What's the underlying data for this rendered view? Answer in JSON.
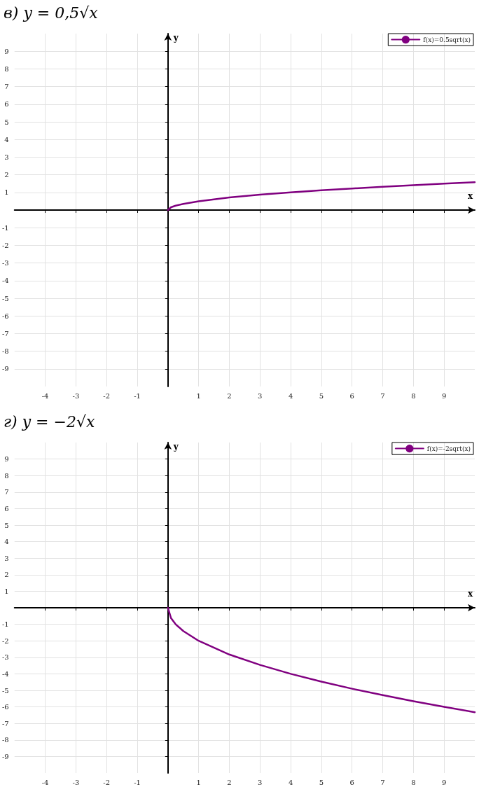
{
  "chart_data": [
    {
      "type": "line",
      "title": "в) y = 0,5√x",
      "xlabel": "x",
      "ylabel": "y",
      "xlim": [
        -5,
        10
      ],
      "ylim": [
        -10,
        10
      ],
      "xticks": [
        -4,
        -3,
        -2,
        -1,
        1,
        2,
        3,
        4,
        5,
        6,
        7,
        8,
        9
      ],
      "yticks": [
        -9,
        -8,
        -7,
        -6,
        -5,
        -4,
        -3,
        -2,
        -1,
        1,
        2,
        3,
        4,
        5,
        6,
        7,
        8,
        9
      ],
      "grid": true,
      "legend": "top right",
      "marker": "none",
      "line_style": "solid",
      "series": [
        {
          "name": "f(x)=0.5sqrt(x)",
          "color": "#800080",
          "x": [
            0,
            0.1,
            0.25,
            0.5,
            1,
            2,
            3,
            4,
            5,
            6,
            7,
            8,
            9,
            10
          ],
          "values": [
            0,
            0.16,
            0.25,
            0.35,
            0.5,
            0.71,
            0.87,
            1,
            1.12,
            1.22,
            1.32,
            1.41,
            1.5,
            1.58
          ]
        }
      ]
    },
    {
      "type": "line",
      "title": "г) y = −2√x",
      "xlabel": "x",
      "ylabel": "y",
      "xlim": [
        -5,
        10
      ],
      "ylim": [
        -10,
        10
      ],
      "xticks": [
        -4,
        -3,
        -2,
        -1,
        1,
        2,
        3,
        4,
        5,
        6,
        7,
        8,
        9
      ],
      "yticks": [
        -9,
        -8,
        -7,
        -6,
        -5,
        -4,
        -3,
        -2,
        -1,
        1,
        2,
        3,
        4,
        5,
        6,
        7,
        8,
        9
      ],
      "grid": true,
      "legend": "top right",
      "marker": "none",
      "line_style": "solid",
      "series": [
        {
          "name": "f(x)=-2sqrt(x)",
          "color": "#800080",
          "x": [
            0,
            0.1,
            0.25,
            0.5,
            1,
            2,
            3,
            4,
            5,
            6,
            7,
            8,
            9,
            10
          ],
          "values": [
            0,
            -0.63,
            -1,
            -1.41,
            -2,
            -2.83,
            -3.46,
            -4,
            -4.47,
            -4.9,
            -5.29,
            -5.66,
            -6,
            -6.32
          ]
        }
      ]
    }
  ]
}
